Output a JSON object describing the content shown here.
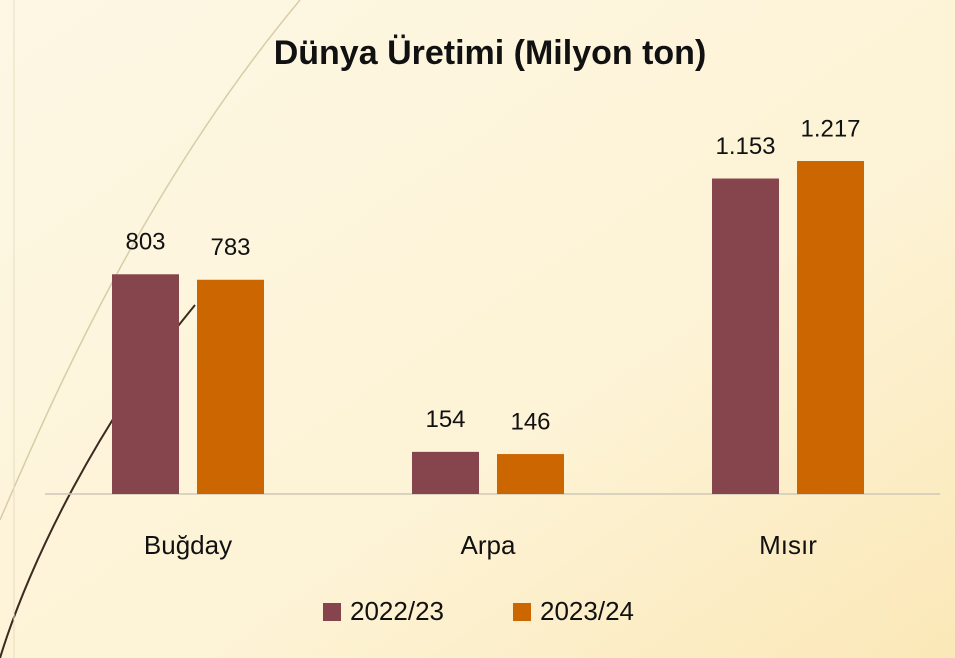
{
  "chart_data": {
    "type": "bar",
    "title": "Dünya Üretimi (Milyon ton)",
    "categories": [
      "Buğday",
      "Arpa",
      "Mısır"
    ],
    "series": [
      {
        "name": "2022/23",
        "color": "#86444d",
        "values": [
          803,
          154,
          1153
        ],
        "value_labels": [
          "803",
          "154",
          "1.153"
        ]
      },
      {
        "name": "2023/24",
        "color": "#cc6600",
        "values": [
          783,
          146,
          1217
        ],
        "value_labels": [
          "783",
          "146",
          "1.217"
        ]
      }
    ]
  }
}
